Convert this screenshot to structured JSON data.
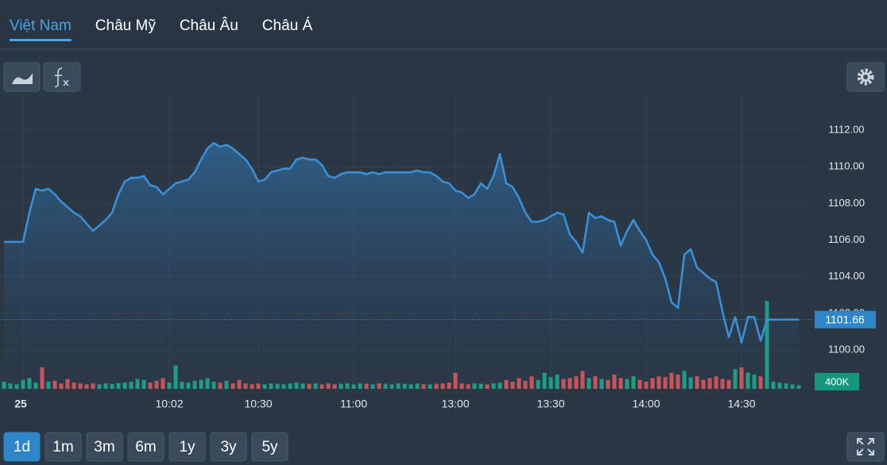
{
  "tabs": {
    "items": [
      "Việt Nam",
      "Châu Mỹ",
      "Châu Âu",
      "Châu Á"
    ],
    "active": 0
  },
  "ranges": {
    "items": [
      "1d",
      "1m",
      "3m",
      "6m",
      "1y",
      "3y",
      "5y"
    ],
    "active": 0
  },
  "chart_data": {
    "type": "line",
    "x": [
      null,
      null,
      null,
      "25",
      null,
      null,
      null,
      null,
      null,
      null,
      null,
      null,
      null,
      null,
      null,
      null,
      null,
      null,
      null,
      null,
      null,
      null,
      null,
      null,
      null,
      null,
      "10:02",
      null,
      null,
      null,
      null,
      null,
      null,
      null,
      null,
      null,
      null,
      null,
      null,
      null,
      "10:30",
      null,
      null,
      null,
      null,
      null,
      null,
      null,
      null,
      null,
      null,
      null,
      null,
      null,
      null,
      "11:00",
      null,
      null,
      null,
      null,
      null,
      null,
      null,
      null,
      null,
      null,
      null,
      null,
      null,
      null,
      null,
      "13:00",
      null,
      null,
      null,
      null,
      null,
      null,
      null,
      null,
      null,
      null,
      null,
      null,
      null,
      null,
      "13:30",
      null,
      null,
      null,
      null,
      null,
      null,
      null,
      null,
      null,
      null,
      null,
      null,
      null,
      null,
      "14:00",
      null,
      null,
      null,
      null,
      null,
      null,
      null,
      null,
      null,
      null,
      null,
      null,
      null,
      null,
      "14:30",
      null,
      null,
      null,
      null,
      null,
      null,
      null,
      null,
      null
    ],
    "series": [
      {
        "color": "#3a8fd6",
        "values": [
          1105.9,
          1105.9,
          1105.9,
          1105.9,
          1107.5,
          1108.8,
          1108.7,
          1108.8,
          1108.5,
          1108.1,
          1107.8,
          1107.5,
          1107.3,
          1106.9,
          1106.5,
          1106.8,
          1107.1,
          1107.5,
          1108.5,
          1109.2,
          1109.4,
          1109.4,
          1109.5,
          1109.0,
          1108.9,
          1108.5,
          1108.8,
          1109.1,
          1109.2,
          1109.3,
          1109.7,
          1110.4,
          1111.0,
          1111.3,
          1111.1,
          1111.2,
          1111.0,
          1110.7,
          1110.4,
          1109.9,
          1109.2,
          1109.3,
          1109.7,
          1109.8,
          1109.9,
          1109.9,
          1110.4,
          1110.5,
          1110.4,
          1110.4,
          1110.1,
          1109.5,
          1109.4,
          1109.6,
          1109.7,
          1109.7,
          1109.7,
          1109.6,
          1109.7,
          1109.6,
          1109.7,
          1109.7,
          1109.7,
          1109.7,
          1109.7,
          1109.8,
          1109.7,
          1109.7,
          1109.5,
          1109.2,
          1109.1,
          1108.7,
          1108.6,
          1108.3,
          1108.5,
          1109.1,
          1108.8,
          1109.5,
          1110.7,
          1109.1,
          1108.9,
          1108.3,
          1107.5,
          1107.0,
          1107.0,
          1107.1,
          1107.3,
          1107.5,
          1107.4,
          1106.3,
          1105.9,
          1105.3,
          1107.5,
          1107.2,
          1107.3,
          1107.1,
          1107.0,
          1105.7,
          1106.5,
          1107.1,
          1106.5,
          1106.0,
          1105.2,
          1104.8,
          1103.9,
          1102.6,
          1102.3,
          1105.2,
          1105.5,
          1104.5,
          1104.2,
          1103.9,
          1103.7,
          1102.1,
          1100.7,
          1101.8,
          1100.4,
          1101.8,
          1101.8,
          1100.5,
          1101.66,
          1101.66,
          1101.66,
          1101.66,
          1101.66,
          1101.66
        ]
      },
      {
        "type": "bar",
        "axis": "y2",
        "up_color": "#1f9d84",
        "down_color": "#c8535b",
        "values": [
          400000,
          300000,
          250000,
          500000,
          600000,
          350000,
          1200000,
          400000,
          450000,
          300000,
          550000,
          350000,
          300000,
          250000,
          300000,
          250000,
          300000,
          280000,
          320000,
          350000,
          400000,
          550000,
          500000,
          350000,
          450000,
          600000,
          350000,
          1300000,
          400000,
          350000,
          450000,
          500000,
          600000,
          400000,
          350000,
          450000,
          300000,
          500000,
          300000,
          250000,
          300000,
          250000,
          300000,
          280000,
          250000,
          300000,
          350000,
          300000,
          280000,
          300000,
          250000,
          300000,
          250000,
          280000,
          300000,
          250000,
          300000,
          280000,
          250000,
          300000,
          280000,
          250000,
          300000,
          280000,
          250000,
          300000,
          260000,
          250000,
          280000,
          300000,
          350000,
          900000,
          300000,
          250000,
          300000,
          280000,
          250000,
          300000,
          350000,
          500000,
          400000,
          600000,
          450000,
          700000,
          500000,
          900000,
          650000,
          800000,
          550000,
          600000,
          700000,
          1000000,
          600000,
          700000,
          550000,
          500000,
          800000,
          600000,
          550000,
          700000,
          500000,
          400000,
          600000,
          700000,
          650000,
          900000,
          800000,
          1000000,
          650000,
          700000,
          500000,
          600000,
          700000,
          550000,
          500000,
          1100000,
          1200000,
          900000,
          800000,
          700000,
          4900000,
          400000,
          350000,
          300000,
          250000,
          200000
        ]
      }
    ],
    "ylim": [
      1097.88,
      1113.91
    ],
    "yticks": [
      {
        "value": 1100,
        "label": "1100.00"
      },
      {
        "value": 1102,
        "label": "1102.00"
      },
      {
        "value": 1104,
        "label": "1104.00"
      },
      {
        "value": 1106,
        "label": "1106.00"
      },
      {
        "value": 1108,
        "label": "1108.00"
      },
      {
        "value": 1110,
        "label": "1110.00"
      },
      {
        "value": 1112,
        "label": "1112.00"
      }
    ],
    "y2lim": [
      0,
      16400000
    ],
    "y2ticks": [
      {
        "value": 400000,
        "label": "400K"
      }
    ],
    "grid": true
  }
}
